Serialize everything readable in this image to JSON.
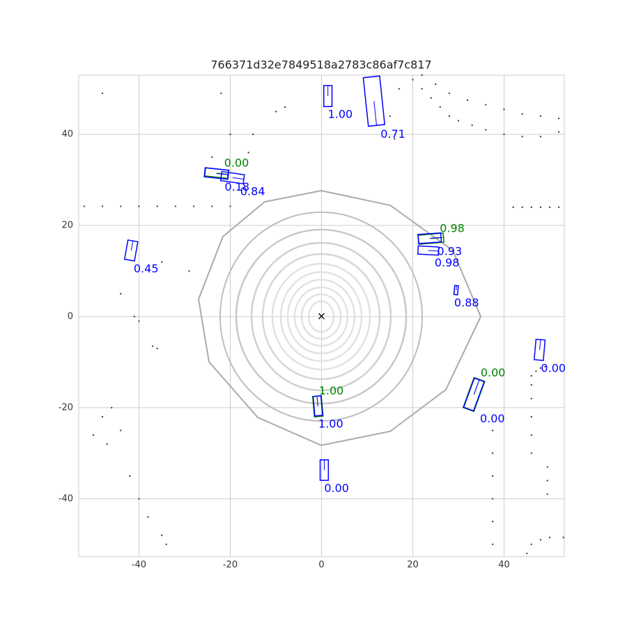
{
  "chart_data": {
    "type": "scatter",
    "title": "766371d32e7849518a2783c86af7c817",
    "xlim": [
      -53.2,
      53.2
    ],
    "ylim": [
      -52.7,
      53
    ],
    "xticks": [
      -40,
      -20,
      0,
      20,
      40
    ],
    "yticks": [
      -40,
      -20,
      0,
      20,
      40
    ],
    "grid": true,
    "point_color": "#444444",
    "points": {
      "x": [
        -52,
        -48,
        -44,
        -40,
        -36,
        -32,
        -28,
        -24,
        -20,
        20,
        22,
        24,
        26,
        28,
        30,
        33,
        36,
        40,
        44,
        48,
        52,
        22,
        25,
        28,
        32,
        36,
        40,
        44,
        48,
        52,
        42,
        44,
        46,
        48,
        50,
        52,
        46,
        46,
        46,
        46,
        46,
        46,
        47,
        48,
        49,
        37.5,
        37.5,
        37.5,
        37.5,
        37.5,
        37.5,
        45,
        46,
        48,
        50,
        53,
        49.5,
        49.5,
        49.5,
        -48,
        -46,
        -44,
        -50,
        -47,
        -42,
        -40,
        -38,
        -35,
        -34,
        -41,
        -40,
        -36,
        -37,
        -44,
        -35,
        -29,
        -48,
        -22,
        -16,
        -24,
        -20,
        -15,
        -10,
        -8,
        15,
        17,
        16
      ],
      "y": [
        24.2,
        24.2,
        24.2,
        24.2,
        24.2,
        24.2,
        24.2,
        24.2,
        24.2,
        52,
        50,
        48,
        46,
        44,
        43,
        42,
        41,
        40,
        39.5,
        39.5,
        40.5,
        53,
        51,
        49,
        47.5,
        46.5,
        45.5,
        44.5,
        44,
        43.5,
        24,
        24,
        24,
        24,
        24,
        24,
        -30,
        -26,
        -22,
        -18,
        -15,
        -13,
        -12,
        -11.3,
        -11,
        -25,
        -30,
        -35,
        -40,
        -45,
        -50,
        -52,
        -50,
        -49,
        -48.5,
        -48.5,
        -33,
        -36,
        -39,
        -22,
        -20,
        -25,
        -26,
        -28,
        -35,
        -40,
        -44,
        -48,
        -50,
        0,
        -1,
        -7,
        -6.5,
        5,
        12,
        10,
        49,
        49,
        36,
        35,
        40,
        40,
        45,
        46,
        44,
        50,
        39
      ]
    },
    "ego": {
      "x": 0,
      "y": 0,
      "marker": "×"
    },
    "boxes": [
      {
        "x": 1.4,
        "y": 48.4,
        "length": 4.6,
        "width": 1.8,
        "heading": 90,
        "color": "#0000ff",
        "score": 1,
        "score_label": "1.00"
      },
      {
        "x": 11.5,
        "y": 47.3,
        "length": 10.7,
        "width": 3.6,
        "heading": -84,
        "color": "#0000ff",
        "score": 0.71,
        "score_label": "0.71"
      },
      {
        "x": -23,
        "y": 31.5,
        "length": 5,
        "width": 1.8,
        "heading": -6,
        "color": "#008000",
        "score": 0,
        "score_label": "0.00"
      },
      {
        "x": -23,
        "y": 31.4,
        "length": 5.2,
        "width": 2,
        "heading": -6,
        "color": "#0000ff",
        "score": 0.18,
        "score_label": "0.18"
      },
      {
        "x": -19.5,
        "y": 30.5,
        "length": 5,
        "width": 2,
        "heading": -8,
        "color": "#0000ff",
        "score": 0.84,
        "score_label": "0.84"
      },
      {
        "x": -41.7,
        "y": 14.5,
        "length": 4.3,
        "width": 2.2,
        "heading": 80,
        "color": "#0000ff",
        "score": 0.45,
        "score_label": "0.45"
      },
      {
        "x": 24,
        "y": 17.1,
        "length": 5.5,
        "width": 2,
        "heading": 5,
        "color": "#008000",
        "score": 0.98,
        "score_label": "0.98"
      },
      {
        "x": 23.7,
        "y": 17.2,
        "length": 5,
        "width": 2,
        "heading": 4,
        "color": "#0000ff",
        "score": 0.93,
        "score_label": "0.93"
      },
      {
        "x": 23.4,
        "y": 14.5,
        "length": 4.5,
        "width": 1.8,
        "heading": -3,
        "color": "#0000ff",
        "score": 0.98,
        "score_label": "0.98"
      },
      {
        "x": 29.5,
        "y": 5.8,
        "length": 2,
        "width": 0.8,
        "heading": 85,
        "color": "#0000ff",
        "score": 0.88,
        "score_label": "0.88"
      },
      {
        "x": 47.8,
        "y": -7.3,
        "length": 4.5,
        "width": 2,
        "heading": 85,
        "color": "#0000ff",
        "score": 0,
        "score_label": "0.00"
      },
      {
        "x": 33.4,
        "y": -17.1,
        "length": 7,
        "width": 2.5,
        "heading": 70,
        "color": "#008000",
        "score": 0,
        "score_label": "0.00"
      },
      {
        "x": 33.4,
        "y": -17.1,
        "length": 6.8,
        "width": 2.3,
        "heading": 70,
        "color": "#0000ff",
        "score": 0,
        "score_label": "0.00"
      },
      {
        "x": -0.8,
        "y": -19.7,
        "length": 4.5,
        "width": 1.9,
        "heading": 95,
        "color": "#008000",
        "score": 1,
        "score_label": "1.00"
      },
      {
        "x": -0.8,
        "y": -19.6,
        "length": 4.3,
        "width": 1.7,
        "heading": 95,
        "color": "#0000ff",
        "score": 1,
        "score_label": "1.00"
      },
      {
        "x": 0.6,
        "y": -33.7,
        "length": 4.5,
        "width": 1.8,
        "heading": 90,
        "color": "#0000ff",
        "score": 0,
        "score_label": "0.00"
      }
    ]
  }
}
